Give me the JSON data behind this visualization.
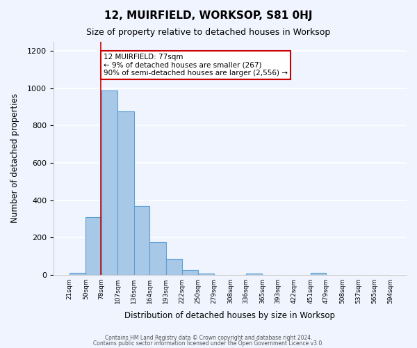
{
  "title": "12, MUIRFIELD, WORKSOP, S81 0HJ",
  "subtitle": "Size of property relative to detached houses in Worksop",
  "xlabel": "Distribution of detached houses by size in Worksop",
  "ylabel": "Number of detached properties",
  "bar_color": "#a8c8e8",
  "bar_edge_color": "#5a9fd4",
  "background_color": "#f0f4ff",
  "grid_color": "#ffffff",
  "bin_edges": [
    21,
    50,
    78,
    107,
    136,
    164,
    193,
    222,
    250,
    279,
    308,
    336,
    365,
    393,
    422,
    451,
    479,
    508,
    537,
    565,
    594
  ],
  "bin_labels": [
    "21sqm",
    "50sqm",
    "78sqm",
    "107sqm",
    "136sqm",
    "164sqm",
    "193sqm",
    "222sqm",
    "250sqm",
    "279sqm",
    "308sqm",
    "336sqm",
    "365sqm",
    "393sqm",
    "422sqm",
    "451sqm",
    "479sqm",
    "508sqm",
    "537sqm",
    "565sqm",
    "594sqm"
  ],
  "counts": [
    10,
    310,
    990,
    875,
    370,
    175,
    85,
    25,
    5,
    0,
    0,
    5,
    0,
    0,
    0,
    10,
    0,
    0,
    0,
    0
  ],
  "property_size": 77,
  "vline_x": 77,
  "vline_color": "#cc0000",
  "annotation_text": "12 MUIRFIELD: 77sqm\n← 9% of detached houses are smaller (267)\n90% of semi-detached houses are larger (2,556) →",
  "annotation_box_color": "#ffffff",
  "annotation_box_edge_color": "#cc0000",
  "footer_line1": "Contains HM Land Registry data © Crown copyright and database right 2024.",
  "footer_line2": "Contains public sector information licensed under the Open Government Licence v3.0.",
  "ylim": [
    0,
    1250
  ],
  "figsize": [
    6.0,
    5.0
  ],
  "dpi": 100
}
